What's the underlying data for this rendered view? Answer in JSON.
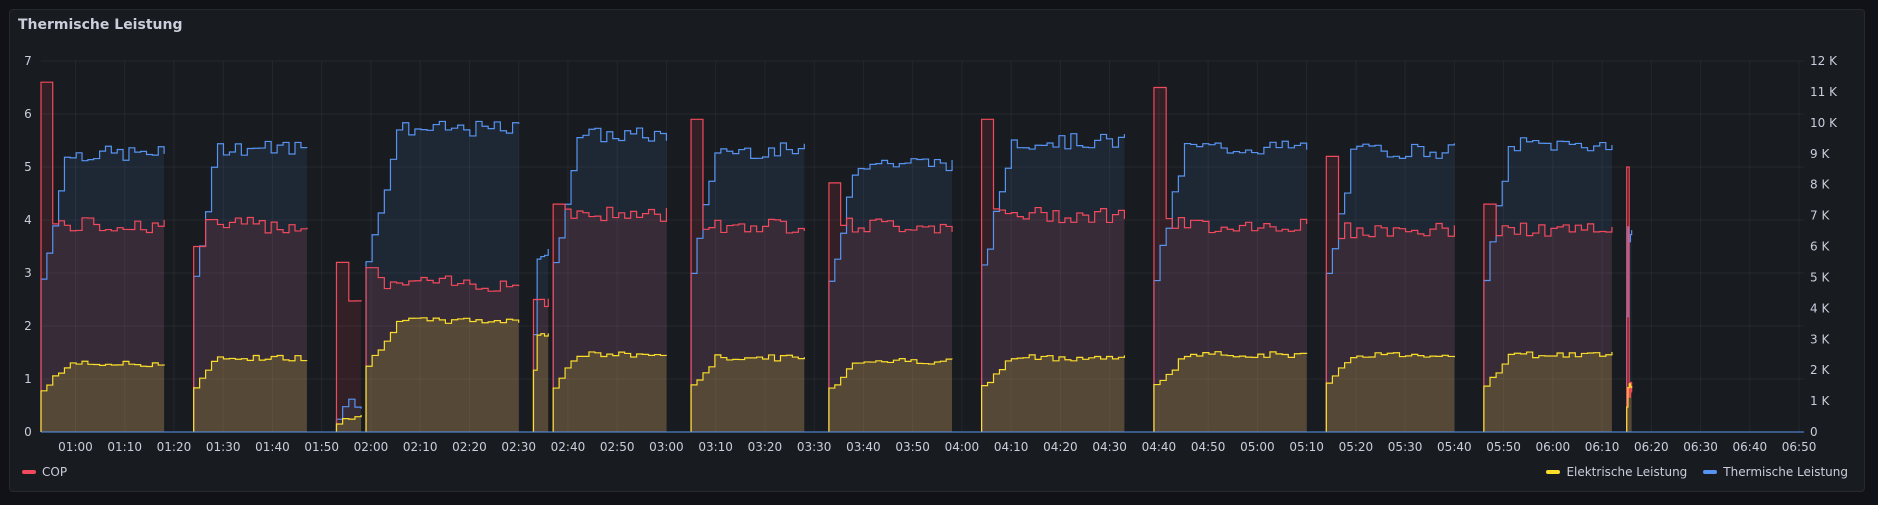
{
  "panel": {
    "title": "Thermische Leistung"
  },
  "chart_data": {
    "type": "area",
    "title": "Thermische Leistung",
    "x_ticks": [
      "01:00",
      "01:10",
      "01:20",
      "01:30",
      "01:40",
      "01:50",
      "02:00",
      "02:10",
      "02:20",
      "02:30",
      "02:40",
      "02:50",
      "03:00",
      "03:10",
      "03:20",
      "03:30",
      "03:40",
      "03:50",
      "04:00",
      "04:10",
      "04:20",
      "04:30",
      "04:40",
      "04:50",
      "05:00",
      "05:10",
      "05:20",
      "05:30",
      "05:40",
      "05:50",
      "06:00",
      "06:10",
      "06:20",
      "06:30",
      "06:40",
      "06:50"
    ],
    "y_left": {
      "range": [
        0,
        7
      ],
      "ticks": [
        "0",
        "1",
        "2",
        "3",
        "4",
        "5",
        "6",
        "7"
      ]
    },
    "y_right": {
      "range": [
        0,
        12000
      ],
      "ticks": [
        "0",
        "1 K",
        "2 K",
        "3 K",
        "4 K",
        "5 K",
        "6 K",
        "7 K",
        "8 K",
        "9 K",
        "10 K",
        "11 K",
        "12 K"
      ]
    },
    "grid": true,
    "legend_placement": "bottom",
    "colors": {
      "cop": "#f2495c",
      "elektrisch": "#fade2a",
      "thermisch": "#5794f2"
    },
    "x_minutes_range": [
      53,
      411
    ],
    "cycles": [
      {
        "start": 53,
        "end": 78,
        "thermisch": 9000,
        "cop": 3.9,
        "elektrisch": 2200,
        "cop_peak": 6.6
      },
      {
        "start": 84,
        "end": 107,
        "thermisch": 9200,
        "cop": 3.9,
        "elektrisch": 2400,
        "cop_peak": 3.5
      },
      {
        "start": 113,
        "end": 118,
        "thermisch": 1000,
        "cop": 2.5,
        "elektrisch": 500,
        "cop_peak": 3.2
      },
      {
        "start": 119,
        "end": 150,
        "thermisch": 9800,
        "cop": 2.8,
        "elektrisch": 3600,
        "cop_peak": 3.1
      },
      {
        "start": 153,
        "end": 156,
        "thermisch": 5800,
        "cop": 2.5,
        "elektrisch": 3200,
        "cop_peak": 2.5
      },
      {
        "start": 157,
        "end": 180,
        "thermisch": 9600,
        "cop": 4.1,
        "elektrisch": 2500,
        "cop_peak": 4.3
      },
      {
        "start": 185,
        "end": 208,
        "thermisch": 9100,
        "cop": 3.9,
        "elektrisch": 2400,
        "cop_peak": 5.9
      },
      {
        "start": 213,
        "end": 238,
        "thermisch": 8700,
        "cop": 3.9,
        "elektrisch": 2300,
        "cop_peak": 4.7
      },
      {
        "start": 244,
        "end": 273,
        "thermisch": 9400,
        "cop": 4.1,
        "elektrisch": 2400,
        "cop_peak": 5.9
      },
      {
        "start": 279,
        "end": 310,
        "thermisch": 9200,
        "cop": 3.9,
        "elektrisch": 2500,
        "cop_peak": 6.5
      },
      {
        "start": 314,
        "end": 340,
        "thermisch": 9100,
        "cop": 3.8,
        "elektrisch": 2500,
        "cop_peak": 5.2
      },
      {
        "start": 346,
        "end": 372,
        "thermisch": 9300,
        "cop": 3.8,
        "elektrisch": 2500,
        "cop_peak": 4.3
      },
      {
        "start": 375,
        "end": 376,
        "thermisch": 6400,
        "cop": 0.8,
        "elektrisch": 1500,
        "cop_peak": 5.0
      }
    ],
    "series": [
      {
        "name": "COP",
        "axis": "left"
      },
      {
        "name": "Elektrische Leistung",
        "axis": "right"
      },
      {
        "name": "Thermische Leistung",
        "axis": "right"
      }
    ]
  },
  "legend": {
    "left": [
      {
        "name": "COP",
        "color": "#f2495c"
      }
    ],
    "right": [
      {
        "name": "Elektrische Leistung",
        "color": "#fade2a"
      },
      {
        "name": "Thermische Leistung",
        "color": "#5794f2"
      }
    ]
  }
}
